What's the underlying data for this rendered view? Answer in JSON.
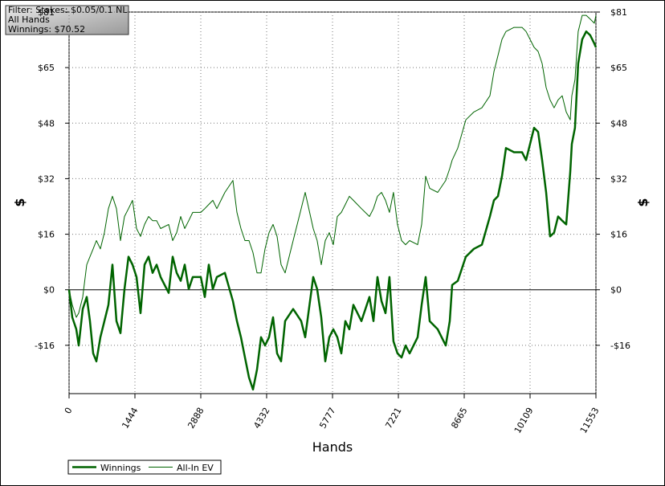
{
  "chart_data": {
    "type": "line",
    "annotations": [
      "Filter: Stakes: $0.05/0.1 NL",
      "All Hands",
      "Winnings: $70.52"
    ],
    "xlabel": "Hands",
    "ylabel": "$",
    "xlim": [
      0,
      11553
    ],
    "xticks": [
      0,
      1444,
      2888,
      4332,
      5777,
      7221,
      8665,
      10109,
      11553
    ],
    "ylim": [
      -30.2,
      80.75
    ],
    "yticks": [
      {
        "value": -16.15,
        "label": "-$16"
      },
      {
        "value": 0,
        "label": "$0"
      },
      {
        "value": 16.15,
        "label": "$16"
      },
      {
        "value": 32.3,
        "label": "$32"
      },
      {
        "value": 48.45,
        "label": "$48"
      },
      {
        "value": 64.6,
        "label": "$65"
      },
      {
        "value": 80.75,
        "label": "$81"
      }
    ],
    "grid": true,
    "legend": "bottom-left",
    "x": [
      0,
      70,
      158,
      211,
      299,
      387,
      458,
      528,
      599,
      687,
      775,
      863,
      951,
      1039,
      1127,
      1215,
      1303,
      1391,
      1479,
      1567,
      1655,
      1743,
      1831,
      1919,
      2008,
      2184,
      2272,
      2360,
      2448,
      2536,
      2624,
      2712,
      2888,
      2976,
      3064,
      3152,
      3240,
      3416,
      3592,
      3680,
      3769,
      3857,
      3945,
      4033,
      4121,
      4209,
      4297,
      4385,
      4473,
      4561,
      4649,
      4737,
      4913,
      5089,
      5177,
      5353,
      5441,
      5530,
      5618,
      5706,
      5794,
      5882,
      5970,
      6058,
      6146,
      6234,
      6410,
      6586,
      6674,
      6762,
      6850,
      6938,
      7026,
      7114,
      7202,
      7291,
      7379,
      7467,
      7643,
      7731,
      7819,
      7907,
      8083,
      8259,
      8347,
      8400,
      8524,
      8700,
      8876,
      9052,
      9228,
      9316,
      9404,
      9493,
      9581,
      9757,
      9933,
      10021,
      10197,
      10285,
      10373,
      10461,
      10548,
      10636,
      10724,
      10813,
      10901,
      10989,
      11024,
      11094,
      11164,
      11252,
      11340,
      11428,
      11517,
      11553
    ],
    "series": [
      {
        "name": "Winnings",
        "color": "#006400",
        "line_width": 2.5,
        "values": [
          0,
          -8.0,
          -11.5,
          -16.2,
          -5.6,
          -2.1,
          -9.1,
          -18.5,
          -20.8,
          -13.8,
          -9.1,
          -4.4,
          7.3,
          -9.1,
          -12.6,
          0.2,
          9.6,
          7.3,
          3.7,
          -6.8,
          7.3,
          9.6,
          4.9,
          7.3,
          3.7,
          -0.9,
          9.6,
          4.9,
          2.6,
          7.3,
          0.2,
          3.7,
          3.7,
          -2.1,
          7.3,
          0.2,
          3.7,
          4.9,
          -3.3,
          -9.1,
          -13.8,
          -19.7,
          -25.5,
          -29.0,
          -23.2,
          -13.8,
          -16.2,
          -13.8,
          -8.0,
          -18.5,
          -20.8,
          -9.1,
          -5.6,
          -9.1,
          -13.8,
          3.7,
          0.2,
          -8.0,
          -20.8,
          -13.8,
          -11.5,
          -13.8,
          -18.5,
          -9.1,
          -11.5,
          -4.4,
          -9.1,
          -2.1,
          -9.1,
          3.7,
          -3.3,
          -6.8,
          3.7,
          -15.0,
          -18.5,
          -19.7,
          -16.2,
          -18.5,
          -13.8,
          -4.4,
          3.7,
          -9.1,
          -11.5,
          -16.2,
          -9.1,
          1.4,
          2.6,
          9.6,
          11.9,
          13.1,
          21.3,
          26.0,
          27.2,
          33.0,
          41.2,
          40.0,
          40.0,
          37.7,
          47.1,
          45.9,
          37.7,
          28.3,
          15.5,
          16.6,
          21.3,
          20.1,
          19.0,
          34.2,
          42.4,
          47.1,
          65.8,
          72.8,
          75.1,
          74.0,
          71.6,
          70.5
        ]
      },
      {
        "name": "All-In EV",
        "color": "#006400",
        "line_width": 1,
        "values": [
          0,
          -4.4,
          -8.0,
          -6.8,
          -2.1,
          7.3,
          9.6,
          11.9,
          14.3,
          11.9,
          16.6,
          23.6,
          27.2,
          23.6,
          14.3,
          21.3,
          23.6,
          26.0,
          17.8,
          15.5,
          19.0,
          21.3,
          20.1,
          20.1,
          17.8,
          19.0,
          14.3,
          16.6,
          21.3,
          17.8,
          20.1,
          22.5,
          22.5,
          23.6,
          24.8,
          26.0,
          23.6,
          28.3,
          31.8,
          22.5,
          17.8,
          14.3,
          14.3,
          10.8,
          4.9,
          4.9,
          11.9,
          16.6,
          19.0,
          15.5,
          7.3,
          4.9,
          14.3,
          23.6,
          28.3,
          17.8,
          14.3,
          7.3,
          14.3,
          16.6,
          13.1,
          21.3,
          22.5,
          24.8,
          27.2,
          26.0,
          23.6,
          21.3,
          23.6,
          27.2,
          28.3,
          26.0,
          22.5,
          28.3,
          19.0,
          14.3,
          13.1,
          14.3,
          13.1,
          19.0,
          33.0,
          29.5,
          28.3,
          31.8,
          35.3,
          37.7,
          41.2,
          49.4,
          51.7,
          52.9,
          56.4,
          63.4,
          68.1,
          72.8,
          75.1,
          76.3,
          76.3,
          75.1,
          70.5,
          69.3,
          65.8,
          58.8,
          55.2,
          52.9,
          55.2,
          56.4,
          51.7,
          49.4,
          56.4,
          61.1,
          75.1,
          79.8,
          79.8,
          78.7,
          77.5,
          79.8
        ]
      }
    ]
  }
}
